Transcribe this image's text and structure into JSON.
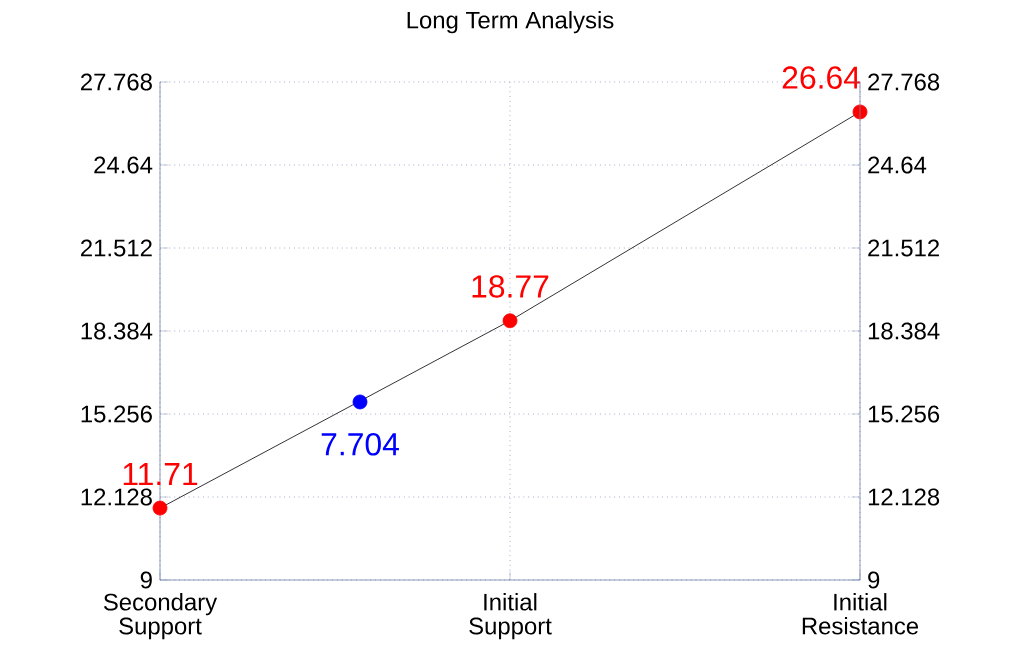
{
  "chart_data": {
    "type": "line",
    "title": "Long Term Analysis",
    "categories": [
      "Secondary Support",
      null,
      null,
      null,
      null,
      null,
      null,
      "Initial Support",
      null,
      null,
      null,
      null,
      null,
      null,
      "Initial Resistance"
    ],
    "series": [
      {
        "color": "#000000",
        "marker": "none",
        "values": [
          11.71,
          null,
          null,
          null,
          null,
          null,
          null,
          18.77,
          null,
          null,
          null,
          null,
          null,
          null,
          26.64
        ]
      },
      {
        "type": "scatter",
        "color": "#ff0000",
        "marker": "circle",
        "values": [
          11.71,
          null,
          null,
          null,
          null,
          null,
          null,
          18.77,
          null,
          null,
          null,
          null,
          null,
          null,
          26.64
        ],
        "value_labels": [
          "11.71",
          null,
          null,
          null,
          null,
          null,
          null,
          "18.77",
          null,
          null,
          null,
          null,
          null,
          null,
          "26.64"
        ]
      },
      {
        "type": "scatter",
        "color": "#0000ff",
        "marker": "circle",
        "values": [
          null,
          null,
          null,
          null,
          15.71,
          null,
          null,
          null,
          null,
          null,
          null,
          null,
          null,
          null,
          null
        ]
      }
    ],
    "annotations": [
      "7.704"
    ],
    "ylim": [
      9,
      27.768
    ],
    "yticks": [
      9,
      12.128,
      15.256,
      18.384,
      21.512,
      24.64,
      27.768
    ],
    "y2lim": [
      9,
      27.768
    ],
    "y2ticks": [
      9,
      12.128,
      15.256,
      18.384,
      21.512,
      24.64,
      27.768
    ],
    "grid": true
  }
}
